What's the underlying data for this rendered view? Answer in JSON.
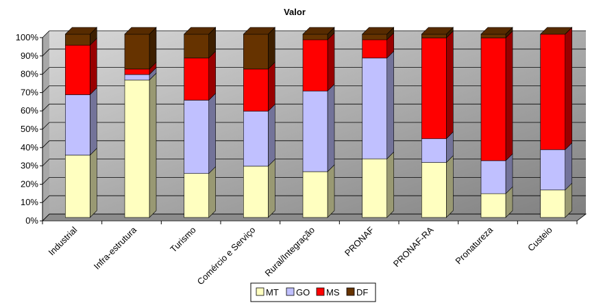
{
  "chart_data": {
    "type": "bar",
    "stacked": true,
    "title": "Valor",
    "categories": [
      "Industrial",
      "Infra-estrutura",
      "Turismo",
      "Comércio e Serviço",
      "Rural/Integração",
      "PRONAF",
      "PRONAF-RA",
      "Pronatureza",
      "Custeio"
    ],
    "series": [
      {
        "name": "MT",
        "color": "#ffffc0",
        "values": [
          34,
          75,
          24,
          28,
          25,
          32,
          30,
          13,
          15
        ]
      },
      {
        "name": "GO",
        "color": "#c0c0ff",
        "values": [
          33,
          3,
          40,
          30,
          44,
          55,
          13,
          18,
          22
        ]
      },
      {
        "name": "MS",
        "color": "#ff0000",
        "values": [
          27,
          3,
          23,
          23,
          28,
          10,
          55,
          67,
          63
        ]
      },
      {
        "name": "DF",
        "color": "#663300",
        "values": [
          6,
          19,
          13,
          19,
          3,
          3,
          2,
          2,
          0
        ]
      }
    ],
    "ylim": [
      0,
      100
    ],
    "yticks": [
      {
        "value": 0,
        "label": "0%"
      },
      {
        "value": 10,
        "label": "10%"
      },
      {
        "value": 20,
        "label": "20%"
      },
      {
        "value": 30,
        "label": "30%"
      },
      {
        "value": 40,
        "label": "40%"
      },
      {
        "value": 50,
        "label": "50%"
      },
      {
        "value": 60,
        "label": "60%"
      },
      {
        "value": 70,
        "label": "70%"
      },
      {
        "value": 80,
        "label": "80%"
      },
      {
        "value": 90,
        "label": "90%"
      },
      {
        "value": 100,
        "label": "100%"
      }
    ],
    "grid": true,
    "legend": "bottom"
  }
}
